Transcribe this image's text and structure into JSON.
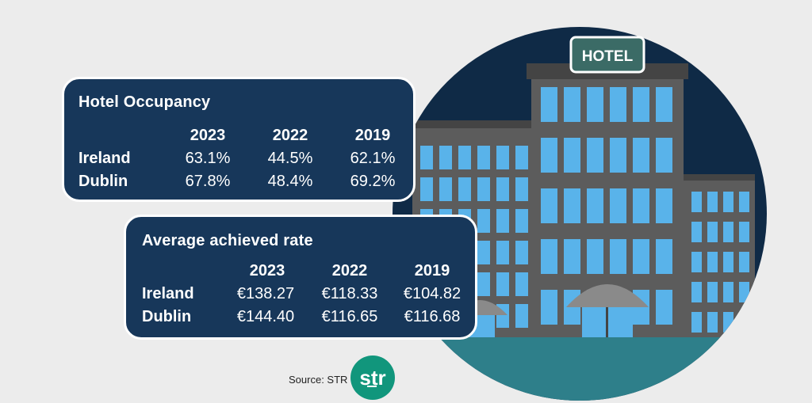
{
  "hotel_sign": "HOTEL",
  "occupancy": {
    "title": "Hotel Occupancy",
    "columns": [
      "2023",
      "2022",
      "2019"
    ],
    "rows": [
      {
        "label": "Ireland",
        "values": [
          "63.1%",
          "44.5%",
          "62.1%"
        ]
      },
      {
        "label": "Dublin",
        "values": [
          "67.8%",
          "48.4%",
          "69.2%"
        ]
      }
    ]
  },
  "rate": {
    "title": "Average achieved rate",
    "columns": [
      "2023",
      "2022",
      "2019"
    ],
    "rows": [
      {
        "label": "Ireland",
        "values": [
          "€138.27",
          "€118.33",
          "€104.82"
        ]
      },
      {
        "label": "Dublin",
        "values": [
          "€144.40",
          "€116.65",
          "€116.68"
        ]
      }
    ]
  },
  "source_label": "Source: STR",
  "logo_text": "str",
  "colors": {
    "background": "#ececec",
    "sky": "#0f2a46",
    "building": "#5c5c5c",
    "window": "#59b3ea",
    "ground": "#2e7f8a",
    "card": "#17375a",
    "sign": "#3b6b66",
    "logo": "#11967c"
  }
}
